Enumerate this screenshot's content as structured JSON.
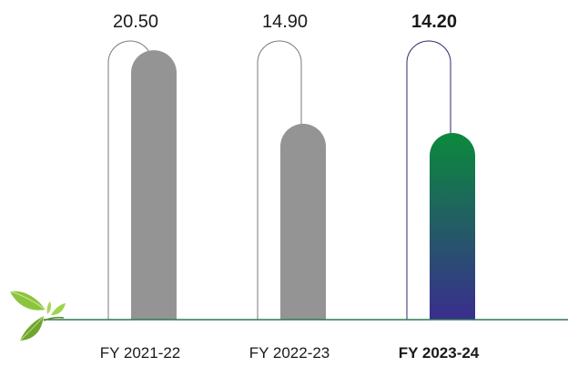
{
  "chart_data": {
    "type": "bar",
    "title": "",
    "xlabel": "",
    "ylabel": "",
    "ylim": [
      0,
      21.2
    ],
    "categories": [
      "FY 2021-22",
      "FY 2022-23",
      "FY 2023-24"
    ],
    "highlight_index": 2,
    "series": [
      {
        "values": [
          20.5,
          14.9,
          14.2
        ],
        "value_labels": [
          "20.50",
          "14.90",
          "14.20"
        ]
      }
    ],
    "grid": false,
    "legend": "none"
  },
  "colors": {
    "bar": "#949494",
    "highlight_top": "#0b8a3c",
    "highlight_bottom": "#3a2e8e",
    "outline": "#7a7a7a",
    "highlight_outline": "#2e2a6b",
    "baseline": "#2f7a52",
    "text": "#1a1a1a"
  },
  "decoration": {
    "leaf_icon": "leaf-icon"
  }
}
